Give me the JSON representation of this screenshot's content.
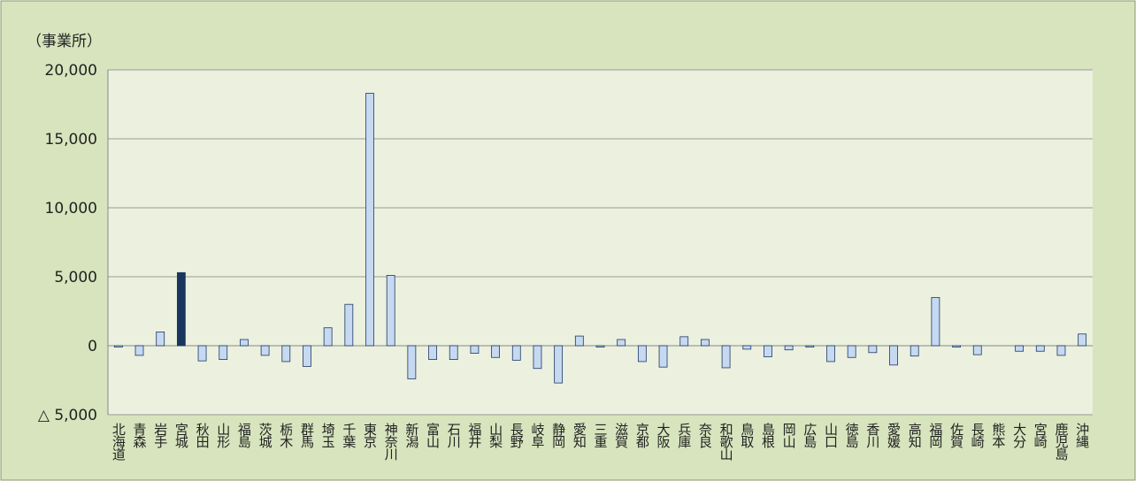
{
  "chart_data": {
    "type": "bar",
    "unit_label": "（事業所）",
    "categories": [
      "北海道",
      "青森",
      "岩手",
      "宮城",
      "秋田",
      "山形",
      "福島",
      "茨城",
      "栃木",
      "群馬",
      "埼玉",
      "千葉",
      "東京",
      "神奈川",
      "新潟",
      "富山",
      "石川",
      "福井",
      "山梨",
      "長野",
      "岐阜",
      "静岡",
      "愛知",
      "三重",
      "滋賀",
      "京都",
      "大阪",
      "兵庫",
      "奈良",
      "和歌山",
      "鳥取",
      "島根",
      "岡山",
      "広島",
      "山口",
      "徳島",
      "香川",
      "愛媛",
      "高知",
      "福岡",
      "佐賀",
      "長崎",
      "熊本",
      "大分",
      "宮崎",
      "鹿児島",
      "沖縄"
    ],
    "values": [
      -100,
      -700,
      1000,
      5300,
      -1100,
      -1000,
      450,
      -700,
      -1150,
      -1500,
      1300,
      3000,
      18300,
      5100,
      -2400,
      -1000,
      -1000,
      -550,
      -850,
      -1050,
      -1650,
      -2700,
      700,
      -100,
      450,
      -1150,
      -1550,
      650,
      450,
      -1600,
      -250,
      -800,
      -300,
      -100,
      -1150,
      -850,
      -500,
      -1400,
      -750,
      3500,
      -100,
      -650,
      0,
      -400,
      -400,
      -700,
      850
    ],
    "colors": [
      "#c6d9f1",
      "#c6d9f1",
      "#c6d9f1",
      "#17375e",
      "#c6d9f1",
      "#c6d9f1",
      "#c6d9f1",
      "#c6d9f1",
      "#c6d9f1",
      "#c6d9f1",
      "#c6d9f1",
      "#c6d9f1",
      "#c6d9f1",
      "#c6d9f1",
      "#c6d9f1",
      "#c6d9f1",
      "#c6d9f1",
      "#c6d9f1",
      "#c6d9f1",
      "#c6d9f1",
      "#c6d9f1",
      "#c6d9f1",
      "#c6d9f1",
      "#c6d9f1",
      "#c6d9f1",
      "#c6d9f1",
      "#c6d9f1",
      "#c6d9f1",
      "#c6d9f1",
      "#c6d9f1",
      "#c6d9f1",
      "#c6d9f1",
      "#c6d9f1",
      "#c6d9f1",
      "#c6d9f1",
      "#c6d9f1",
      "#c6d9f1",
      "#c6d9f1",
      "#c6d9f1",
      "#c6d9f1",
      "#c6d9f1",
      "#c6d9f1",
      "#c6d9f1",
      "#c6d9f1",
      "#c6d9f1",
      "#c6d9f1",
      "#c6d9f1"
    ],
    "ylim": [
      -5000,
      20000
    ],
    "yticks": [
      {
        "value": -5000,
        "label": "△ 5,000"
      },
      0,
      {
        "value": 5000,
        "label": "5,000"
      },
      {
        "value": 10000,
        "label": "10,000"
      },
      {
        "value": 15000,
        "label": "15,000"
      },
      {
        "value": 20000,
        "label": "20,000"
      }
    ],
    "grid": true
  }
}
